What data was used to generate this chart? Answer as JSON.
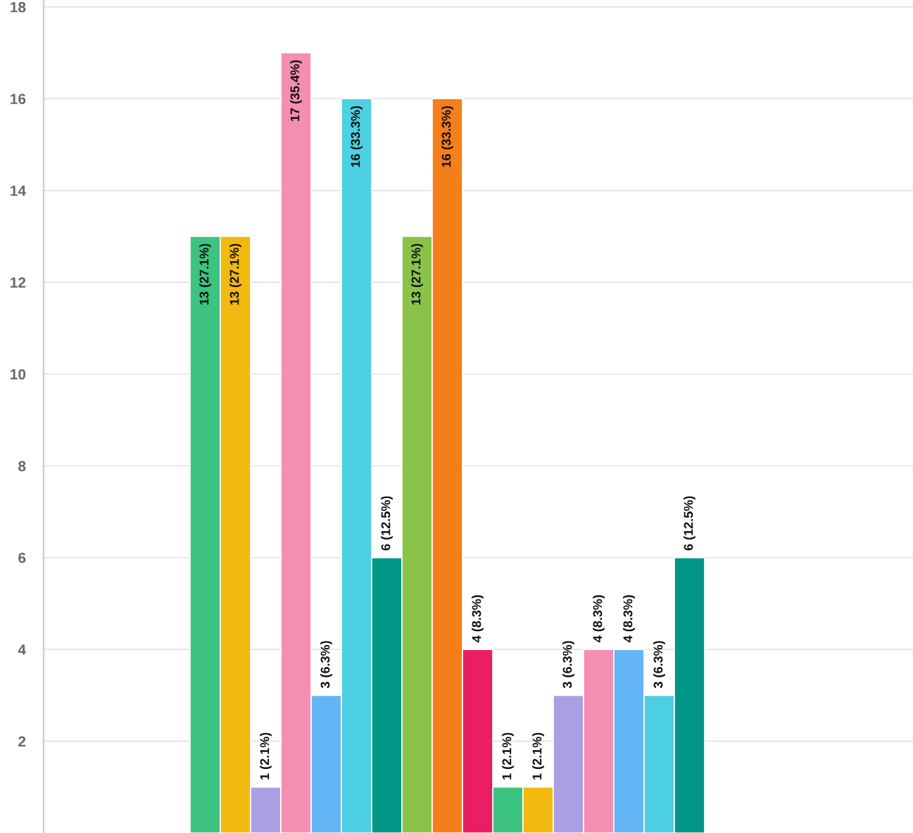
{
  "chart_data": {
    "type": "bar",
    "categories": [
      null,
      null
    ],
    "series": [
      {
        "color": "#3dc380",
        "values": [
          13,
          1
        ],
        "value_labels": [
          "13 (27.1%)",
          "1 (2.1%)"
        ]
      },
      {
        "color": "#f2b90f",
        "values": [
          13,
          1
        ],
        "value_labels": [
          "13 (27.1%)",
          "1 (2.1%)"
        ]
      },
      {
        "color": "#ab9fe4",
        "values": [
          1,
          3
        ],
        "value_labels": [
          "1 (2.1%)",
          "3 (6.3%)"
        ]
      },
      {
        "color": "#f48fb1",
        "values": [
          17,
          4
        ],
        "value_labels": [
          "17 (35.4%)",
          "4 (8.3%)"
        ]
      },
      {
        "color": "#64b5f6",
        "values": [
          3,
          4
        ],
        "value_labels": [
          "3 (6.3%)",
          "4 (8.3%)"
        ]
      },
      {
        "color": "#4dd0e1",
        "values": [
          16,
          3
        ],
        "value_labels": [
          "16 (33.3%)",
          "3 (6.3%)"
        ]
      },
      {
        "color": "#009688",
        "values": [
          6,
          6
        ],
        "value_labels": [
          "6 (12.5%)",
          "6 (12.5%)"
        ]
      },
      {
        "color": "#8bc34a",
        "values": [
          13,
          null
        ],
        "value_labels": [
          "13 (27.1%)",
          null
        ]
      },
      {
        "color": "#f47f1a",
        "values": [
          16,
          null
        ],
        "value_labels": [
          "16 (33.3%)",
          null
        ]
      },
      {
        "color": "#e91e63",
        "values": [
          4,
          null
        ],
        "value_labels": [
          "4 (8.3%)",
          null
        ]
      }
    ],
    "ylim": [
      0,
      18.15
    ],
    "yticks": [
      2,
      4,
      6,
      8,
      10,
      12,
      14,
      16,
      18
    ],
    "grid": "y",
    "tick_labels": "y",
    "legend": false
  }
}
